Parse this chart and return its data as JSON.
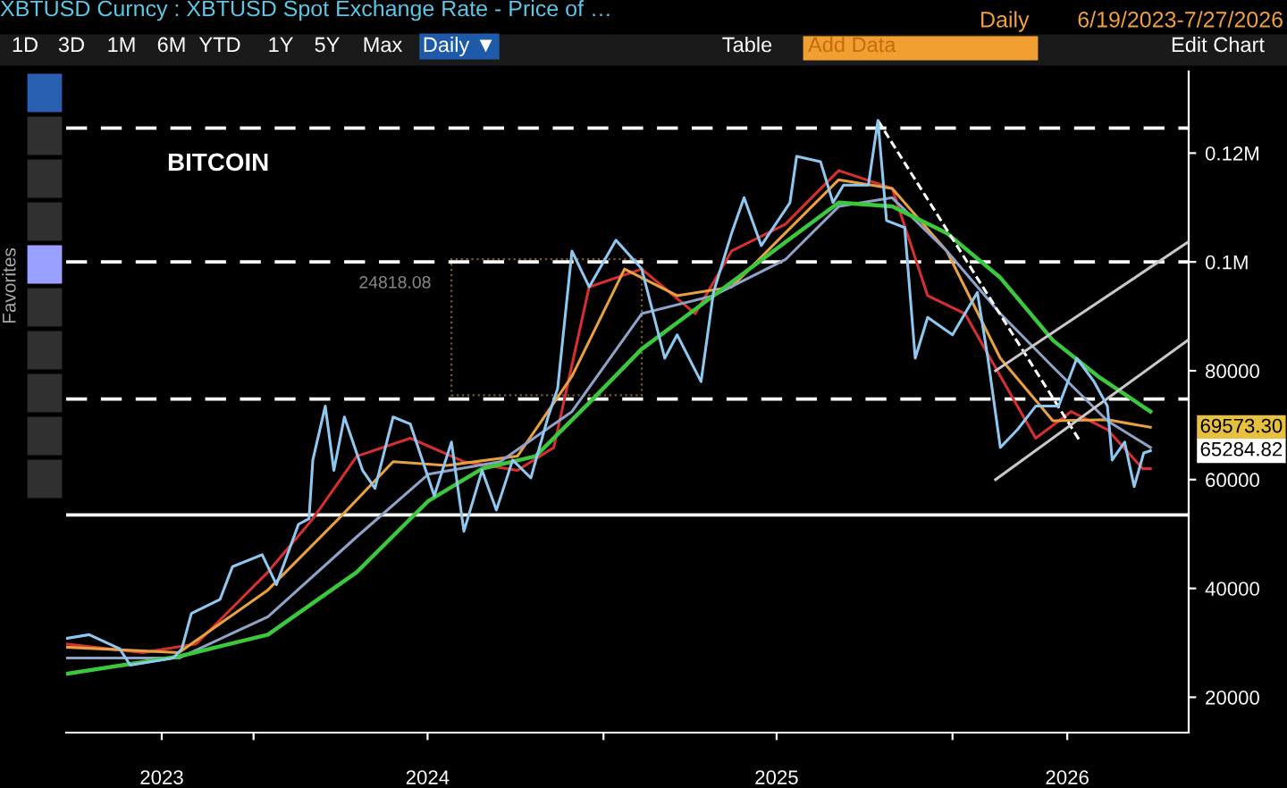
{
  "chart_data": {
    "type": "line",
    "title": "XBTUSD Curncy : XBTUSD Spot Exchange Rate - Price of …",
    "annotations": [
      "Daily",
      "6/19/2023-7/27/2026",
      "1D",
      "3D",
      "1M",
      "6M",
      "YTD",
      "1Y",
      "5Y",
      "Max",
      "Daily ▼",
      "Table",
      "Add Data",
      "Edit Chart",
      "Favorites",
      "BITCOIN",
      "24818.08",
      {
        "text": "69573.30",
        "x": "2026-07-27",
        "y": 69573.3
      },
      {
        "text": "65284.82",
        "x": "2026-07-27",
        "y": 65284.82
      }
    ],
    "series": [
      {
        "color": "#8ec8f0",
        "x": [
          "2023-06-19",
          "2023-07-13",
          "2023-08-14",
          "2023-08-25",
          "2023-10-09",
          "2023-10-18",
          "2023-10-28",
          "2023-11-27",
          "2023-12-10",
          "2024-01-10",
          "2024-01-25",
          "2024-02-17",
          "2024-02-28",
          "2024-03-03",
          "2024-03-16",
          "2024-03-25",
          "2024-04-05",
          "2024-04-24",
          "2024-05-07",
          "2024-05-26",
          "2024-06-13",
          "2024-07-08",
          "2024-07-26",
          "2024-08-08",
          "2024-08-27",
          "2024-09-11",
          "2024-09-28",
          "2024-10-17",
          "2024-11-04",
          "2024-11-14",
          "2024-11-29",
          "2024-12-17",
          "2025-01-14",
          "2025-02-10",
          "2025-03-06",
          "2025-03-19",
          "2025-04-13",
          "2025-04-26",
          "2025-05-15",
          "2025-05-28",
          "2025-06-15",
          "2025-07-15",
          "2025-07-22",
          "2025-08-16",
          "2025-08-29",
          "2025-09-09",
          "2025-10-05",
          "2025-10-15",
          "2025-10-24",
          "2025-11-12",
          "2025-11-23",
          "2025-12-06",
          "2026-01-01",
          "2026-01-27",
          "2026-02-07",
          "2026-02-20",
          "2026-03-10",
          "2026-03-29",
          "2026-04-22",
          "2026-05-11",
          "2026-05-29",
          "2026-06-12",
          "2026-06-17",
          "2026-06-30",
          "2026-07-10",
          "2026-07-20",
          "2026-07-27"
        ],
        "values": [
          30800,
          31500,
          28900,
          25900,
          27200,
          28900,
          35400,
          38000,
          44000,
          46200,
          40700,
          51800,
          52800,
          63600,
          73500,
          61700,
          71500,
          61700,
          58400,
          71500,
          70200,
          57000,
          66900,
          50500,
          61700,
          54400,
          63600,
          60300,
          71500,
          76700,
          102000,
          95400,
          104000,
          98700,
          82300,
          86600,
          78000,
          94400,
          105300,
          111800,
          103000,
          110900,
          119400,
          118400,
          110900,
          114100,
          114100,
          126000,
          107600,
          106300,
          82300,
          89800,
          86600,
          94400,
          82300,
          65900,
          69200,
          73500,
          73500,
          82300,
          78000,
          73500,
          63600,
          66900,
          58700,
          64900,
          65300
        ]
      },
      {
        "color": "#d43030",
        "x": [
          "2023-06-19",
          "2023-09-07",
          "2023-11-02",
          "2024-01-16",
          "2024-03-03",
          "2024-04-18",
          "2024-06-13",
          "2024-08-08",
          "2024-10-03",
          "2024-11-10",
          "2024-12-17",
          "2025-02-10",
          "2025-04-07",
          "2025-05-15",
          "2025-07-10",
          "2025-09-04",
          "2025-10-30",
          "2025-12-06",
          "2026-01-14",
          "2026-02-20",
          "2026-03-29",
          "2026-05-05",
          "2026-06-12",
          "2026-07-19",
          "2026-07-27"
        ],
        "values": [
          29800,
          28200,
          29800,
          43000,
          52800,
          64300,
          67600,
          63300,
          61700,
          65900,
          95400,
          98700,
          90500,
          102000,
          106900,
          116800,
          113500,
          93800,
          90500,
          79000,
          67600,
          72500,
          69200,
          62000,
          62000
        ]
      },
      {
        "color": "#e8a040",
        "x": [
          "2023-06-19",
          "2023-10-15",
          "2024-01-16",
          "2024-03-30",
          "2024-05-26",
          "2024-07-21",
          "2024-10-03",
          "2024-11-29",
          "2025-01-23",
          "2025-03-19",
          "2025-05-15",
          "2025-07-10",
          "2025-09-04",
          "2025-10-30",
          "2025-12-26",
          "2026-02-20",
          "2026-04-16",
          "2026-06-12",
          "2026-07-27"
        ],
        "values": [
          29200,
          28200,
          39700,
          52800,
          63300,
          62600,
          64300,
          79000,
          98700,
          93800,
          95400,
          105300,
          115100,
          113500,
          102000,
          82300,
          70800,
          71000,
          69600
        ]
      },
      {
        "color": "#8fa3c8",
        "x": [
          "2023-06-19",
          "2023-10-15",
          "2024-01-16",
          "2024-04-18",
          "2024-07-02",
          "2024-09-15",
          "2024-11-29",
          "2025-02-10",
          "2025-04-26",
          "2025-07-10",
          "2025-09-04",
          "2025-10-30",
          "2025-12-26",
          "2026-02-20",
          "2026-04-16",
          "2026-06-12",
          "2026-07-27"
        ],
        "values": [
          27200,
          27200,
          34800,
          49500,
          61000,
          63300,
          72500,
          90500,
          93800,
          100400,
          110200,
          111800,
          102000,
          90500,
          80700,
          70800,
          65900
        ]
      },
      {
        "color": "#3cc83c",
        "x": [
          "2023-06-19",
          "2023-10-15",
          "2024-01-16",
          "2024-04-18",
          "2024-07-02",
          "2024-08-27",
          "2024-10-22",
          "2024-12-17",
          "2025-02-10",
          "2025-04-26",
          "2025-07-10",
          "2025-09-04",
          "2025-10-30",
          "2025-12-26",
          "2026-02-20",
          "2026-04-16",
          "2026-06-02",
          "2026-07-27"
        ],
        "values": [
          24300,
          27500,
          31500,
          43000,
          56100,
          62000,
          64300,
          74100,
          84000,
          93800,
          103600,
          110900,
          110200,
          105300,
          97100,
          85600,
          79000,
          72500
        ]
      },
      {
        "color": "#ffffff",
        "line_style": "dashed",
        "x": [
          "2025-10-15",
          "2026-05-15"
        ],
        "values": [
          126000,
          66900
        ]
      },
      {
        "color": "#c8c8c8",
        "x": [
          "2026-02-15",
          "2026-09-04"
        ],
        "values": [
          80000,
          103600
        ]
      },
      {
        "color": "#c8c8c8",
        "x": [
          "2026-02-15",
          "2026-09-04"
        ],
        "values": [
          60000,
          85600
        ]
      }
    ],
    "ref_lines": [
      {
        "axis": "y",
        "value": 124600,
        "color": "#ffffff",
        "line_style": "dashed"
      },
      {
        "axis": "y",
        "value": 100000,
        "color": "#ffffff",
        "line_style": "dashed"
      },
      {
        "axis": "y",
        "value": 74800,
        "color": "#ffffff",
        "line_style": "dashed"
      },
      {
        "axis": "y",
        "value": 53500,
        "color": "#ffffff",
        "line_style": "solid"
      }
    ],
    "xlim": [
      "2023-06-19",
      "2026-09-05"
    ],
    "xticks": [
      {
        "value": "2023-09-27",
        "label": "2023"
      },
      {
        "value": "2024-01-01",
        "label": null
      },
      {
        "value": "2024-07-01",
        "label": "2024"
      },
      {
        "value": "2025-01-01",
        "label": null
      },
      {
        "value": "2025-07-01",
        "label": "2025"
      },
      {
        "value": "2026-01-01",
        "label": null
      },
      {
        "value": "2026-05-01",
        "label": "2026"
      }
    ],
    "ylim": [
      13500,
      135000
    ],
    "yticks": [
      20000,
      40000,
      60000,
      80000,
      {
        "value": 100000,
        "label": "0.1M"
      },
      {
        "value": 120000,
        "label": "0.12M"
      }
    ],
    "grid": false,
    "legend": false,
    "marker": "none",
    "line_style": "solid"
  }
}
